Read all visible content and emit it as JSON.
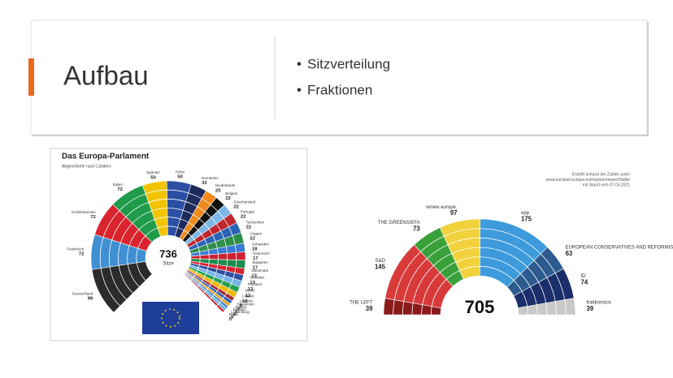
{
  "slide": {
    "title": "Aufbau",
    "bullets": [
      "Sitzverteilung",
      "Fraktionen"
    ]
  },
  "chart_data": [
    {
      "type": "parliament",
      "title": "Das Europa-Parlament",
      "subtitle": "Abgeordnete nach Ländern",
      "total": 736,
      "total_label": "Sitze",
      "categories": [
        "Deutschland",
        "Frankreich",
        "Großbritannien",
        "Italien",
        "Spanien",
        "Polen",
        "Rumänien",
        "Niederlande",
        "Belgien",
        "Griechenland",
        "Portugal",
        "Tschechien",
        "Ungarn",
        "Schweden",
        "Österreich",
        "Bulgarien",
        "Dänemark",
        "Slowakei",
        "Finnland",
        "Irland",
        "Litauen",
        "Lettland",
        "Slowenien",
        "Zypern",
        "Estland",
        "Luxemburg",
        "Malta"
      ],
      "values": [
        99,
        72,
        72,
        72,
        50,
        50,
        33,
        25,
        22,
        22,
        22,
        22,
        22,
        18,
        17,
        17,
        13,
        13,
        13,
        12,
        12,
        8,
        7,
        6,
        6,
        6,
        5
      ],
      "colors": [
        "#2b2b2b",
        "#3f8fd2",
        "#d9232e",
        "#1f9b4a",
        "#f2c400",
        "#2c4fa3",
        "#1d2a5c",
        "#f08a1c",
        "#111111",
        "#7ab6e6",
        "#c0262d",
        "#2b63b5",
        "#2f8f4a",
        "#3a7bd5",
        "#cf2030",
        "#1d8c4a",
        "#d92330",
        "#3050a0",
        "#75b2e8",
        "#22a050",
        "#f1b800",
        "#a62b3a",
        "#2a60c0",
        "#e8a100",
        "#4a8ad6",
        "#65b0e0",
        "#c8202a"
      ]
    },
    {
      "type": "parliament",
      "total": 705,
      "note": [
        "Erstellt anhand der Zahlen unter",
        "www.europarl.europa.eu/meps/en/search/table",
        "mit Stand vom 07.03.2021"
      ],
      "categories": [
        "THE LEFT",
        "S&D",
        "THE GREENS/EFA",
        "renew europe.",
        "epp",
        "EUROPEAN CONSERVATIVES AND REFORMISTS",
        "ID",
        "fraktionslos"
      ],
      "values": [
        39,
        145,
        73,
        97,
        175,
        63,
        74,
        39
      ],
      "colors": [
        "#8b1a1a",
        "#d83a3a",
        "#3aa03a",
        "#f2d23c",
        "#3d9bdb",
        "#2d5b8f",
        "#1a2f6a",
        "#c8c8c8"
      ]
    }
  ]
}
